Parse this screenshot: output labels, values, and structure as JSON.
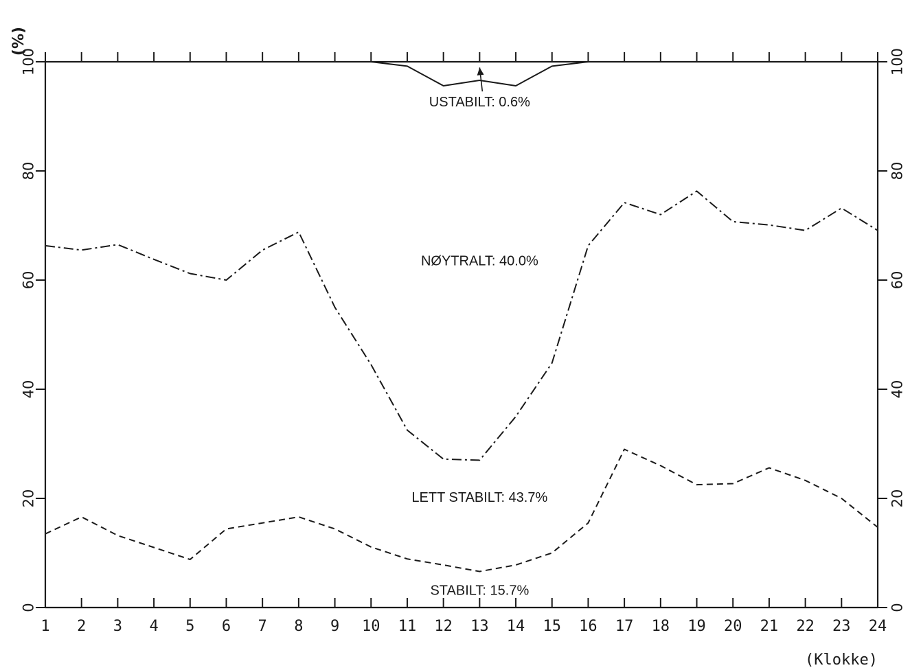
{
  "chart_data": {
    "type": "line",
    "ylabel": "(%)",
    "xlabel": "(Klokke)",
    "x": [
      1,
      2,
      3,
      4,
      5,
      6,
      7,
      8,
      9,
      10,
      11,
      12,
      13,
      14,
      15,
      16,
      17,
      18,
      19,
      20,
      21,
      22,
      23,
      24
    ],
    "xlim": [
      1,
      24
    ],
    "ylim": [
      0,
      100
    ],
    "yticks": [
      0,
      20,
      40,
      60,
      80,
      100
    ],
    "grid": false,
    "series": [
      {
        "style": "solid",
        "values": [
          100,
          100,
          100,
          100,
          100,
          100,
          100,
          100,
          100,
          100,
          99.2,
          95.6,
          96.6,
          95.6,
          99.2,
          100,
          100,
          100,
          100,
          100,
          100,
          100,
          100,
          100
        ]
      },
      {
        "style": "dash-dot",
        "values": [
          66.3,
          65.5,
          66.5,
          63.8,
          61.2,
          60.0,
          65.5,
          68.8,
          55.0,
          44.5,
          32.5,
          27.2,
          27.0,
          35.0,
          44.8,
          66.3,
          74.2,
          72.0,
          76.3,
          70.7,
          70.1,
          69.1,
          73.2,
          69.1
        ]
      },
      {
        "style": "dashed",
        "values": [
          13.5,
          16.6,
          13.2,
          11.0,
          8.8,
          14.4,
          15.5,
          16.6,
          14.4,
          11.1,
          8.9,
          7.8,
          6.6,
          7.8,
          10.0,
          15.5,
          29.0,
          26.0,
          22.5,
          22.7,
          25.6,
          23.3,
          20.0,
          14.7
        ]
      }
    ],
    "annotations": [
      {
        "text": "USTABILT: 0.6%",
        "x": 13.0,
        "y": 91.8,
        "arrow_to": [
          13.0,
          99.2
        ]
      },
      {
        "text": "NØYTRALT: 40.0%",
        "x": 13.0,
        "y": 62.7
      },
      {
        "text": "LETT STABILT: 43.7%",
        "x": 13.0,
        "y": 19.4
      },
      {
        "text": "STABILT: 15.7%",
        "x": 13.0,
        "y": 2.3
      }
    ]
  }
}
